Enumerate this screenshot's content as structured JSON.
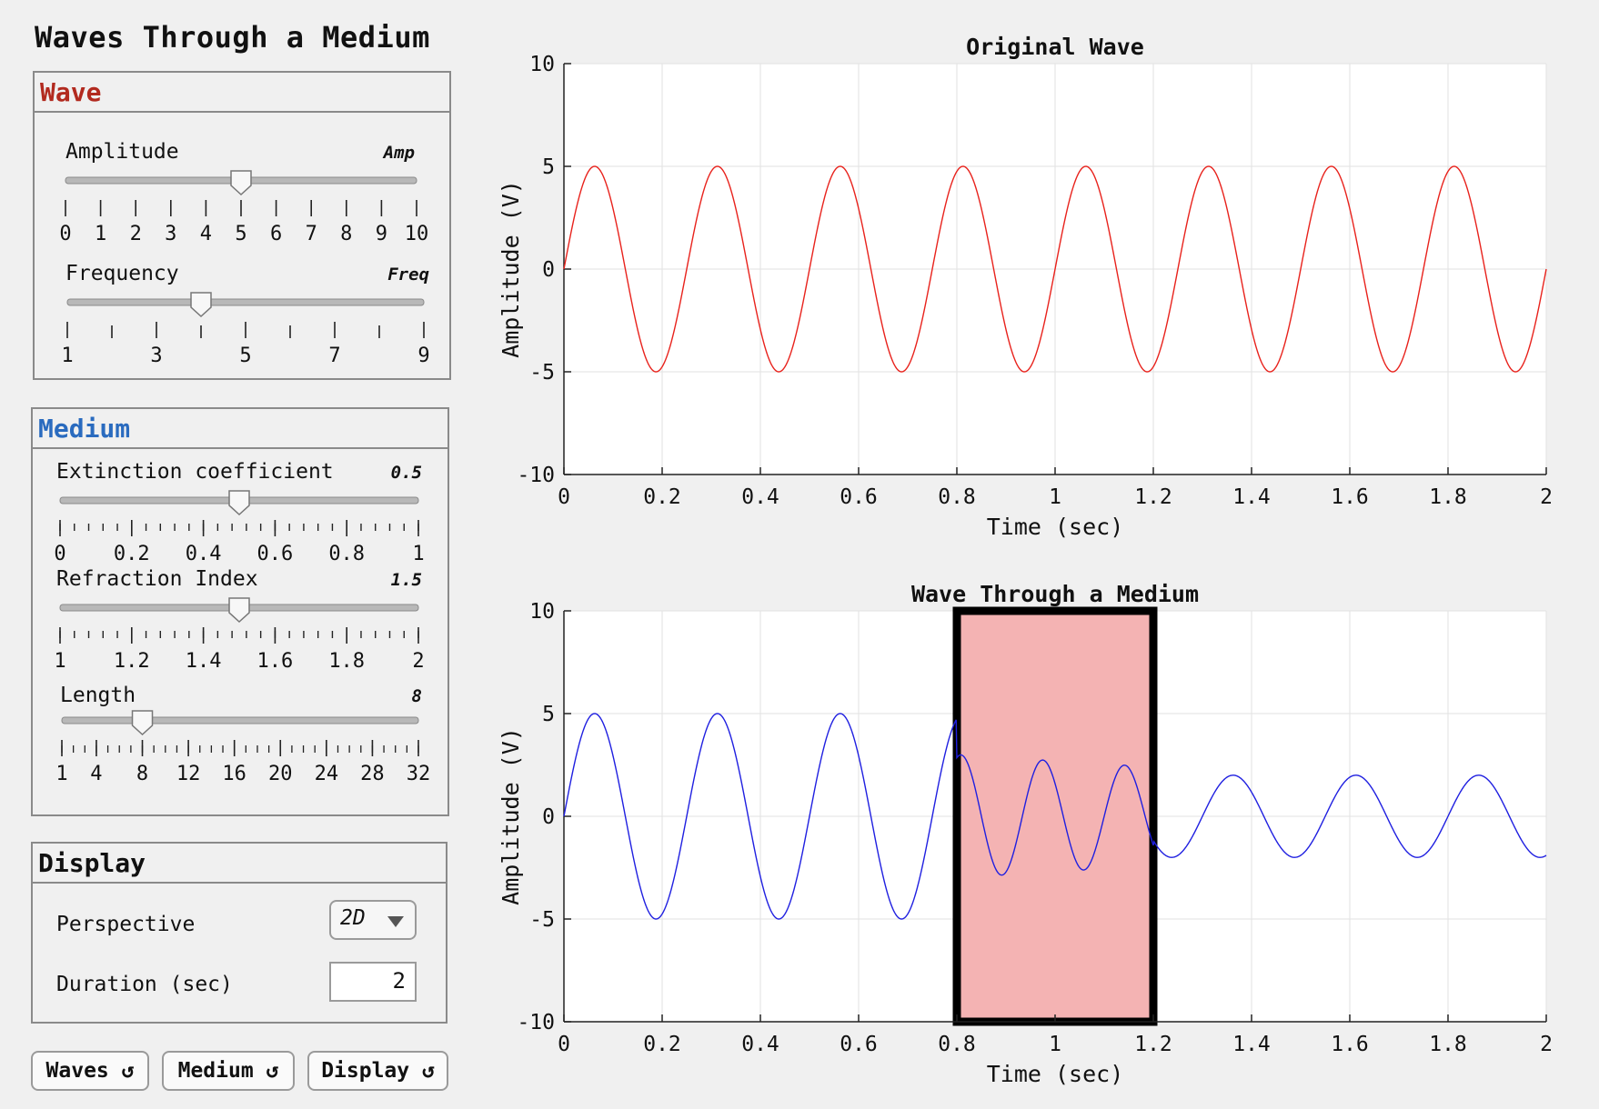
{
  "app": {
    "title": "Waves Through a Medium"
  },
  "wave_panel": {
    "title": "Wave",
    "title_color": "#b22a1f",
    "amplitude": {
      "label": "Amplitude",
      "tag": "Amp",
      "min": 0,
      "max": 10,
      "value": 5,
      "ticks": [
        "0",
        "1",
        "2",
        "3",
        "4",
        "5",
        "6",
        "7",
        "8",
        "9",
        "10"
      ]
    },
    "frequency": {
      "label": "Frequency",
      "tag": "Freq",
      "min": 1,
      "max": 9,
      "value": 4,
      "ticks": [
        "1",
        "",
        "3",
        "",
        "5",
        "",
        "7",
        "",
        "9"
      ]
    }
  },
  "medium_panel": {
    "title": "Medium",
    "title_color": "#2a6bbf",
    "extinction": {
      "label": "Extinction coefficient",
      "tag": "0.5",
      "min": 0,
      "max": 1,
      "value": 0.5,
      "ticks": [
        "0",
        "0.2",
        "0.4",
        "0.6",
        "0.8",
        "1"
      ]
    },
    "refraction": {
      "label": "Refraction Index",
      "tag": "1.5",
      "min": 1,
      "max": 2,
      "value": 1.5,
      "ticks": [
        "1",
        "1.2",
        "1.4",
        "1.6",
        "1.8",
        "2"
      ]
    },
    "length": {
      "label": "Length",
      "tag": "8",
      "min": 1,
      "max": 32,
      "value": 8,
      "ticks": [
        "1",
        "4",
        "8",
        "12",
        "16",
        "20",
        "24",
        "28",
        "32"
      ]
    }
  },
  "display_panel": {
    "title": "Display",
    "perspective_label": "Perspective",
    "perspective_value": "2D",
    "duration_label": "Duration (sec)",
    "duration_value": "2"
  },
  "buttons": {
    "waves": "Waves ↺",
    "medium": "Medium ↺",
    "display": "Display ↺"
  },
  "chart_data": [
    {
      "type": "line",
      "title": "Original Wave",
      "xlabel": "Time (sec)",
      "ylabel": "Amplitude (V)",
      "xlim": [
        0,
        2
      ],
      "ylim": [
        -10,
        10
      ],
      "xticks": [
        "0",
        "0.2",
        "0.4",
        "0.6",
        "0.8",
        "1",
        "1.2",
        "1.4",
        "1.6",
        "1.8",
        "2"
      ],
      "yticks": [
        "10",
        "5",
        "0",
        "-5",
        "-10"
      ],
      "grid": true,
      "series": [
        {
          "color": "#e8221c",
          "amplitude": 5,
          "frequency": 4
        }
      ]
    },
    {
      "type": "line",
      "title": "Wave Through a Medium",
      "xlabel": "Time (sec)",
      "ylabel": "Amplitude (V)",
      "xlim": [
        0,
        2
      ],
      "ylim": [
        -10,
        10
      ],
      "xticks": [
        "0",
        "0.2",
        "0.4",
        "0.6",
        "0.8",
        "1",
        "1.2",
        "1.4",
        "1.6",
        "1.8",
        "2"
      ],
      "yticks": [
        "10",
        "5",
        "0",
        "-5",
        "-10"
      ],
      "grid": true,
      "medium_region": {
        "x_start": 0.8,
        "x_end": 1.2,
        "fill": "#f4b3b3",
        "border": "#000000"
      },
      "series": [
        {
          "color": "#1f1fe0",
          "amplitude_before": 5,
          "amplitude_inside": 3,
          "amplitude_after": 2,
          "frequency": 4,
          "frequency_inside": 6
        }
      ]
    }
  ]
}
